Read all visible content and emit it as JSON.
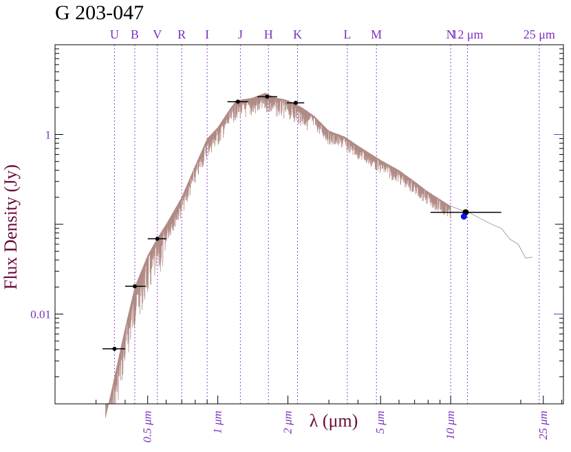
{
  "chart_data": {
    "type": "scatter",
    "title": "G 203-047",
    "xlabel": "λ (μm)",
    "ylabel": "Flux Density (Jy)",
    "x_scale": "log",
    "y_scale": "log",
    "xlim": [
      0.2,
      30.5
    ],
    "ylim": [
      0.001,
      10
    ],
    "grid": false,
    "x_tick_labels": [
      {
        "x": 0.5,
        "label": "0.5 μm"
      },
      {
        "x": 1,
        "label": "1 μm"
      },
      {
        "x": 2,
        "label": "2 μm"
      },
      {
        "x": 5,
        "label": "5 μm"
      },
      {
        "x": 10,
        "label": "10 μm"
      },
      {
        "x": 25,
        "label": "25 μm"
      }
    ],
    "y_tick_labels": [
      {
        "y": 1,
        "label": "1"
      },
      {
        "y": 0.01,
        "label": "0.01"
      }
    ],
    "bands": [
      {
        "label": "U",
        "x": 0.36
      },
      {
        "label": "B",
        "x": 0.44
      },
      {
        "label": "V",
        "x": 0.55
      },
      {
        "label": "R",
        "x": 0.7
      },
      {
        "label": "I",
        "x": 0.9
      },
      {
        "label": "J",
        "x": 1.25
      },
      {
        "label": "H",
        "x": 1.65
      },
      {
        "label": "K",
        "x": 2.2
      },
      {
        "label": "L",
        "x": 3.6
      },
      {
        "label": "M",
        "x": 4.8
      },
      {
        "label": "N",
        "x": 10.0
      },
      {
        "label": "12 μm",
        "x": 11.8
      },
      {
        "label": "25 μm",
        "x": 24.0
      }
    ],
    "photometry": [
      {
        "x": 0.36,
        "y": 0.0041,
        "xerr": [
          0.32,
          0.4
        ]
      },
      {
        "x": 0.44,
        "y": 0.0204,
        "xerr": [
          0.4,
          0.49
        ]
      },
      {
        "x": 0.55,
        "y": 0.069,
        "xerr": [
          0.5,
          0.6
        ]
      },
      {
        "x": 1.22,
        "y": 2.32,
        "xerr": [
          1.1,
          1.35
        ]
      },
      {
        "x": 1.63,
        "y": 2.64,
        "xerr": [
          1.48,
          1.8
        ]
      },
      {
        "x": 2.16,
        "y": 2.25,
        "xerr": [
          1.98,
          2.35
        ]
      },
      {
        "x": 11.6,
        "y": 0.136,
        "xerr": [
          8.2,
          16.5
        ]
      }
    ],
    "extra_point": {
      "x": 11.4,
      "y": 0.122,
      "color": "#0b12e8"
    },
    "model_envelope": [
      [
        0.33,
        0.0007
      ],
      [
        0.36,
        0.002
      ],
      [
        0.4,
        0.007
      ],
      [
        0.44,
        0.02
      ],
      [
        0.5,
        0.045
      ],
      [
        0.55,
        0.07
      ],
      [
        0.6,
        0.1
      ],
      [
        0.7,
        0.2
      ],
      [
        0.8,
        0.45
      ],
      [
        0.9,
        0.9
      ],
      [
        1.0,
        1.2
      ],
      [
        1.1,
        1.75
      ],
      [
        1.2,
        2.4
      ],
      [
        1.4,
        2.55
      ],
      [
        1.6,
        2.9
      ],
      [
        1.75,
        2.6
      ],
      [
        2.0,
        2.4
      ],
      [
        2.3,
        2.0
      ],
      [
        2.6,
        1.6
      ],
      [
        3.0,
        1.1
      ],
      [
        3.5,
        0.95
      ],
      [
        4.0,
        0.75
      ],
      [
        5.0,
        0.52
      ],
      [
        6.0,
        0.4
      ],
      [
        7.0,
        0.3
      ],
      [
        8.0,
        0.23
      ],
      [
        10.0,
        0.16
      ]
    ],
    "model_tail": [
      [
        10.0,
        0.16
      ],
      [
        11.0,
        0.145
      ],
      [
        12.0,
        0.135
      ],
      [
        13.5,
        0.115
      ],
      [
        15.0,
        0.1
      ],
      [
        16.5,
        0.09
      ],
      [
        18.0,
        0.068
      ],
      [
        19.5,
        0.06
      ],
      [
        21.0,
        0.042
      ],
      [
        22.5,
        0.043
      ]
    ],
    "colors": {
      "model": "#b08a85",
      "tail": "#9a9a9a",
      "band_line": "#8a3fd9",
      "text": "#7b2fbe",
      "axis_label": "#6b0a3c",
      "points": "#000000"
    }
  }
}
